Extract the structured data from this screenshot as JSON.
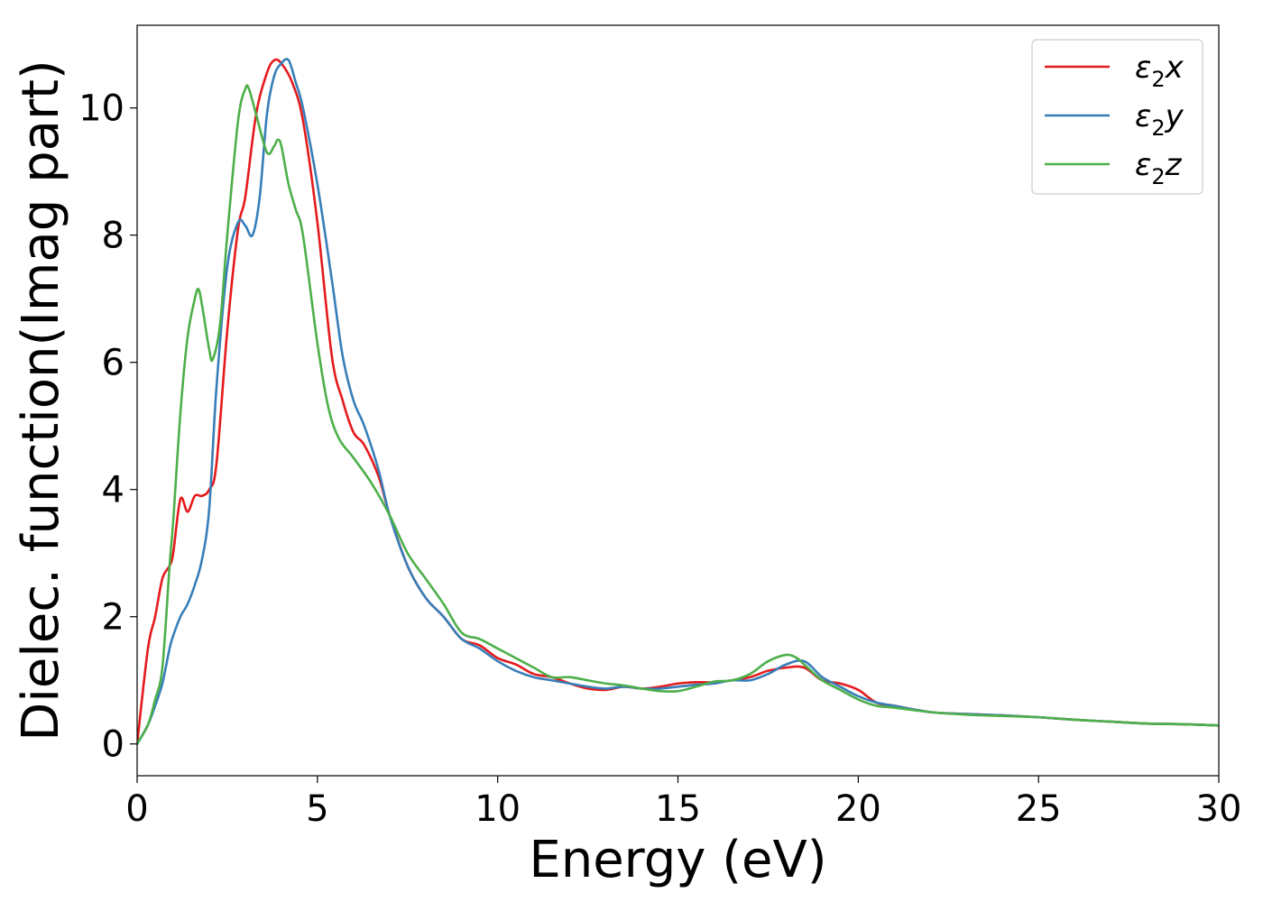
{
  "chart_data": {
    "type": "line",
    "title": "",
    "xlabel": "Energy (eV)",
    "ylabel": "Dielec. function(Imag part)",
    "xlim": [
      0,
      30
    ],
    "ylim": [
      -0.5,
      11.3
    ],
    "xticks": [
      0,
      5,
      10,
      15,
      20,
      25,
      30
    ],
    "yticks": [
      0,
      2,
      4,
      6,
      8,
      10
    ],
    "grid": false,
    "legend_position": "top-right",
    "series": [
      {
        "name": "ε₂x",
        "label_base": "ε",
        "label_sub": "2",
        "label_var": "x",
        "color": "#e41a1c",
        "x": [
          0,
          0.3,
          0.5,
          0.7,
          0.9,
          1.0,
          1.2,
          1.4,
          1.6,
          1.8,
          2.0,
          2.2,
          2.5,
          2.8,
          3.0,
          3.3,
          3.6,
          3.8,
          4.0,
          4.3,
          4.6,
          5.0,
          5.4,
          5.7,
          6.0,
          6.3,
          6.7,
          7.0,
          7.5,
          8.0,
          8.5,
          9.0,
          9.5,
          10.0,
          10.5,
          11.0,
          11.5,
          12.0,
          12.5,
          13.0,
          13.5,
          14.0,
          14.5,
          15.0,
          15.5,
          16.0,
          16.5,
          17.0,
          17.5,
          18.0,
          18.5,
          19.0,
          19.5,
          20.0,
          20.5,
          21.0,
          22.0,
          23.0,
          24.0,
          25.0,
          26.0,
          27.0,
          28.0,
          29.0,
          30.0
        ],
        "y": [
          0.0,
          1.5,
          2.0,
          2.6,
          2.8,
          3.0,
          3.85,
          3.65,
          3.9,
          3.9,
          4.0,
          4.4,
          6.5,
          8.1,
          8.6,
          9.9,
          10.55,
          10.75,
          10.7,
          10.4,
          9.8,
          8.2,
          6.1,
          5.4,
          4.9,
          4.7,
          4.2,
          3.6,
          2.8,
          2.3,
          2.0,
          1.65,
          1.55,
          1.35,
          1.25,
          1.1,
          1.05,
          0.95,
          0.87,
          0.85,
          0.9,
          0.87,
          0.9,
          0.95,
          0.97,
          0.97,
          1.0,
          1.05,
          1.15,
          1.2,
          1.2,
          1.0,
          0.95,
          0.85,
          0.65,
          0.6,
          0.5,
          0.47,
          0.45,
          0.42,
          0.38,
          0.35,
          0.32,
          0.31,
          0.29
        ]
      },
      {
        "name": "ε₂y",
        "label_base": "ε",
        "label_sub": "2",
        "label_var": "y",
        "color": "#377eb8",
        "x": [
          0,
          0.3,
          0.5,
          0.7,
          0.9,
          1.0,
          1.2,
          1.4,
          1.6,
          1.8,
          2.0,
          2.2,
          2.5,
          2.8,
          3.0,
          3.2,
          3.4,
          3.6,
          3.8,
          4.0,
          4.2,
          4.4,
          4.6,
          5.0,
          5.4,
          5.7,
          6.0,
          6.3,
          6.7,
          7.0,
          7.5,
          8.0,
          8.5,
          9.0,
          9.5,
          10.0,
          10.5,
          11.0,
          11.5,
          12.0,
          12.5,
          13.0,
          13.5,
          14.0,
          14.5,
          15.0,
          15.5,
          16.0,
          16.5,
          17.0,
          17.5,
          18.0,
          18.5,
          19.0,
          19.5,
          20.0,
          20.5,
          21.0,
          22.0,
          23.0,
          24.0,
          25.0,
          26.0,
          27.0,
          28.0,
          29.0,
          30.0
        ],
        "y": [
          0.0,
          0.3,
          0.6,
          0.95,
          1.5,
          1.7,
          2.0,
          2.2,
          2.5,
          2.9,
          3.7,
          5.6,
          7.5,
          8.2,
          8.15,
          8.0,
          8.6,
          9.9,
          10.5,
          10.7,
          10.75,
          10.4,
          10.0,
          8.8,
          7.3,
          6.1,
          5.4,
          5.0,
          4.3,
          3.6,
          2.8,
          2.3,
          2.0,
          1.65,
          1.5,
          1.3,
          1.15,
          1.05,
          1.0,
          0.95,
          0.9,
          0.87,
          0.9,
          0.87,
          0.87,
          0.9,
          0.93,
          0.95,
          1.0,
          1.0,
          1.1,
          1.25,
          1.3,
          1.05,
          0.9,
          0.75,
          0.65,
          0.6,
          0.5,
          0.47,
          0.45,
          0.42,
          0.38,
          0.35,
          0.32,
          0.31,
          0.29
        ]
      },
      {
        "name": "ε₂z",
        "label_base": "ε",
        "label_sub": "2",
        "label_var": "z",
        "color": "#4daf4a",
        "x": [
          0,
          0.3,
          0.5,
          0.7,
          0.9,
          1.0,
          1.2,
          1.4,
          1.6,
          1.7,
          1.8,
          2.0,
          2.1,
          2.3,
          2.5,
          2.8,
          3.0,
          3.1,
          3.3,
          3.6,
          3.8,
          3.9,
          4.0,
          4.2,
          4.4,
          4.6,
          5.0,
          5.3,
          5.6,
          6.0,
          6.5,
          7.0,
          7.5,
          8.0,
          8.5,
          9.0,
          9.5,
          10.0,
          10.5,
          11.0,
          11.5,
          12.0,
          12.5,
          13.0,
          13.5,
          14.0,
          14.5,
          15.0,
          15.5,
          16.0,
          16.5,
          17.0,
          17.5,
          18.0,
          18.3,
          18.5,
          19.0,
          19.5,
          20.0,
          20.5,
          21.0,
          22.0,
          23.0,
          24.0,
          25.0,
          26.0,
          27.0,
          28.0,
          29.0,
          30.0
        ],
        "y": [
          0.0,
          0.3,
          0.7,
          1.2,
          2.8,
          3.5,
          5.2,
          6.4,
          7.0,
          7.15,
          6.9,
          6.2,
          6.05,
          6.6,
          8.0,
          9.8,
          10.3,
          10.3,
          9.9,
          9.3,
          9.4,
          9.5,
          9.4,
          8.8,
          8.4,
          8.0,
          6.3,
          5.3,
          4.8,
          4.5,
          4.1,
          3.6,
          3.0,
          2.6,
          2.2,
          1.75,
          1.65,
          1.5,
          1.35,
          1.2,
          1.05,
          1.05,
          1.0,
          0.95,
          0.92,
          0.87,
          0.83,
          0.83,
          0.9,
          0.98,
          1.0,
          1.1,
          1.3,
          1.4,
          1.35,
          1.25,
          1.0,
          0.85,
          0.7,
          0.6,
          0.57,
          0.5,
          0.46,
          0.44,
          0.42,
          0.38,
          0.35,
          0.32,
          0.31,
          0.29
        ]
      }
    ]
  }
}
